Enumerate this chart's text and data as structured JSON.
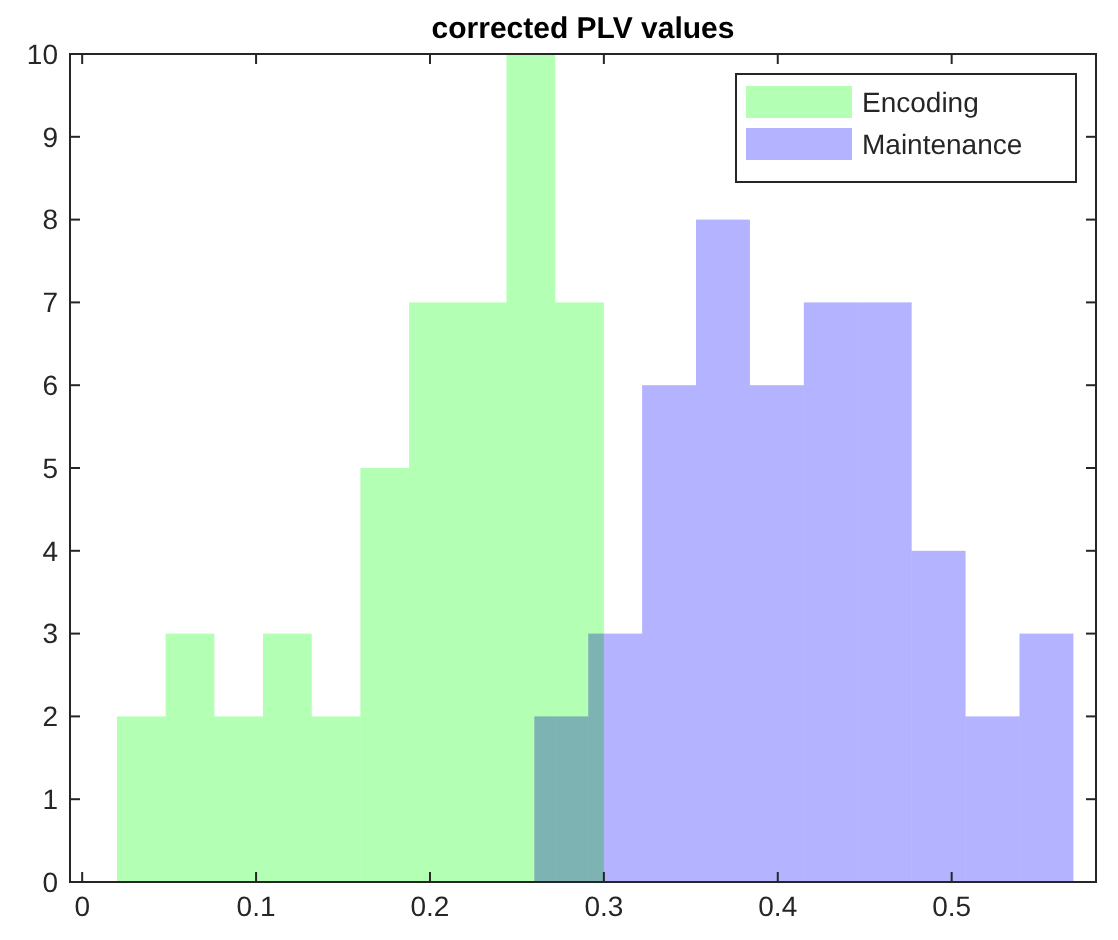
{
  "chart_data": {
    "type": "histogram",
    "title": "corrected PLV values",
    "bins": [
      0.02,
      0.048,
      0.076,
      0.104,
      0.132,
      0.16,
      0.188,
      0.216,
      0.244,
      0.26,
      0.272,
      0.291,
      0.3,
      0.322,
      0.353,
      0.384,
      0.415,
      0.446,
      0.477,
      0.508,
      0.539,
      0.57
    ],
    "series": [
      {
        "name": "Encoding",
        "color": "#b3ffb3",
        "values": [
          2,
          3,
          2,
          3,
          2,
          5,
          7,
          7,
          10,
          10,
          7,
          7,
          null,
          null,
          null,
          null,
          null,
          null,
          null,
          null,
          null
        ]
      },
      {
        "name": "Maintenance",
        "color": "#b3b3ff",
        "values": [
          null,
          null,
          null,
          null,
          null,
          null,
          null,
          null,
          null,
          2,
          2,
          3,
          3,
          6,
          8,
          6,
          7,
          7,
          4,
          2,
          3
        ]
      }
    ],
    "xlim": [
      -0.007,
      0.583
    ],
    "xticks": [
      0,
      0.1,
      0.2,
      0.3,
      0.4,
      0.5
    ],
    "ylim": [
      0,
      10
    ],
    "yticks": [
      0,
      1,
      2,
      3,
      4,
      5,
      6,
      7,
      8,
      9,
      10
    ],
    "legend": "top right"
  }
}
